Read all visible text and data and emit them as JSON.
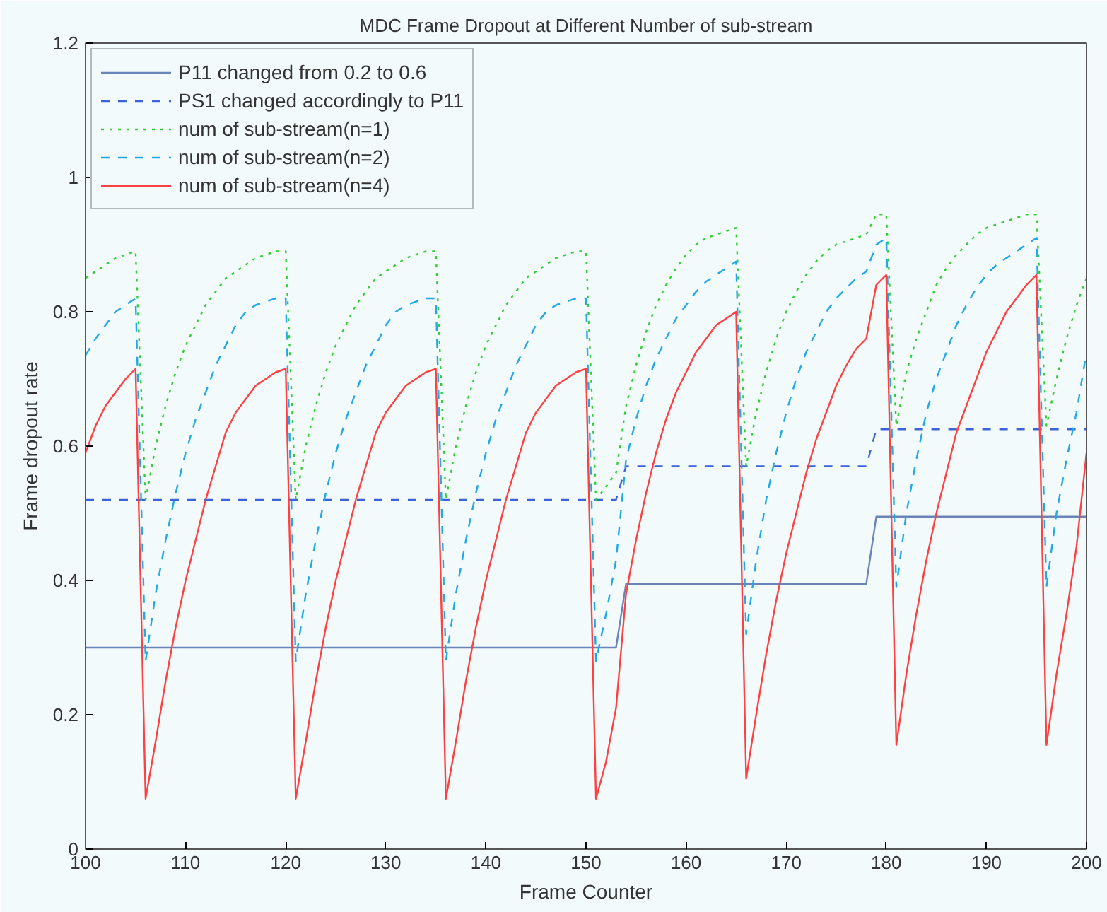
{
  "chart_data": {
    "type": "line",
    "title": "MDC Frame Dropout at Different Number of sub-stream",
    "xlabel": "Frame Counter",
    "ylabel": "Frame dropout rate",
    "xlim": [
      100,
      200
    ],
    "ylim": [
      0,
      1.2
    ],
    "xticks": [
      100,
      110,
      120,
      130,
      140,
      150,
      160,
      170,
      180,
      190,
      200
    ],
    "yticks": [
      0,
      0.2,
      0.4,
      0.6,
      0.8,
      1,
      1.2
    ],
    "grid": false,
    "legend": "top left",
    "marker": "none",
    "series": [
      {
        "name": "P11 changed from 0.2 to 0.6",
        "color": "#6a84b8",
        "line_style": "solid",
        "x": [
          100,
          153,
          154,
          178,
          179,
          200
        ],
        "values": [
          0.3,
          0.3,
          0.395,
          0.395,
          0.495,
          0.495
        ]
      },
      {
        "name": "PS1 changed accordingly to P11",
        "color": "#3c64d8",
        "line_style": "dashed",
        "x": [
          100,
          153,
          154,
          178,
          179,
          200
        ],
        "values": [
          0.52,
          0.52,
          0.57,
          0.57,
          0.625,
          0.625
        ]
      },
      {
        "name": "num of sub-stream(n=1)",
        "color": "#30d030",
        "line_style": "dotted",
        "x": [
          100,
          101,
          102,
          103,
          104,
          105,
          106,
          107,
          108,
          109,
          110,
          111,
          112,
          113,
          114,
          115,
          116,
          117,
          118,
          119,
          120,
          121,
          122,
          123,
          124,
          125,
          126,
          127,
          128,
          129,
          130,
          131,
          132,
          133,
          134,
          135,
          136,
          137,
          138,
          139,
          140,
          141,
          142,
          143,
          144,
          145,
          146,
          147,
          148,
          149,
          150,
          151,
          152,
          153,
          154,
          155,
          156,
          157,
          158,
          159,
          160,
          161,
          162,
          163,
          164,
          165,
          166,
          167,
          168,
          169,
          170,
          171,
          172,
          173,
          174,
          175,
          176,
          177,
          178,
          179,
          180,
          181,
          182,
          183,
          184,
          185,
          186,
          187,
          188,
          189,
          190,
          191,
          192,
          193,
          194,
          195,
          196,
          197,
          198,
          199,
          200
        ],
        "values": [
          0.85,
          0.86,
          0.87,
          0.88,
          0.885,
          0.89,
          0.52,
          0.6,
          0.66,
          0.71,
          0.75,
          0.78,
          0.81,
          0.83,
          0.85,
          0.86,
          0.87,
          0.88,
          0.885,
          0.89,
          0.89,
          0.52,
          0.6,
          0.66,
          0.71,
          0.75,
          0.78,
          0.81,
          0.83,
          0.85,
          0.86,
          0.87,
          0.88,
          0.885,
          0.89,
          0.89,
          0.52,
          0.6,
          0.66,
          0.71,
          0.75,
          0.78,
          0.81,
          0.83,
          0.85,
          0.86,
          0.87,
          0.88,
          0.885,
          0.89,
          0.89,
          0.52,
          0.54,
          0.56,
          0.66,
          0.72,
          0.77,
          0.81,
          0.84,
          0.865,
          0.885,
          0.9,
          0.91,
          0.915,
          0.92,
          0.925,
          0.57,
          0.65,
          0.71,
          0.76,
          0.8,
          0.83,
          0.855,
          0.875,
          0.89,
          0.9,
          0.905,
          0.91,
          0.915,
          0.945,
          0.945,
          0.63,
          0.71,
          0.76,
          0.8,
          0.84,
          0.865,
          0.885,
          0.9,
          0.915,
          0.925,
          0.93,
          0.935,
          0.94,
          0.945,
          0.945,
          0.63,
          0.7,
          0.76,
          0.81,
          0.85
        ]
      },
      {
        "name": "num of sub-stream(n=2)",
        "color": "#20a8e8",
        "line_style": "dashed",
        "x": [
          100,
          101,
          102,
          103,
          104,
          105,
          106,
          107,
          108,
          109,
          110,
          111,
          112,
          113,
          114,
          115,
          116,
          117,
          118,
          119,
          120,
          121,
          122,
          123,
          124,
          125,
          126,
          127,
          128,
          129,
          130,
          131,
          132,
          133,
          134,
          135,
          136,
          137,
          138,
          139,
          140,
          141,
          142,
          143,
          144,
          145,
          146,
          147,
          148,
          149,
          150,
          151,
          152,
          153,
          154,
          155,
          156,
          157,
          158,
          159,
          160,
          161,
          162,
          163,
          164,
          165,
          166,
          167,
          168,
          169,
          170,
          171,
          172,
          173,
          174,
          175,
          176,
          177,
          178,
          179,
          180,
          181,
          182,
          183,
          184,
          185,
          186,
          187,
          188,
          189,
          190,
          191,
          192,
          193,
          194,
          195,
          196,
          197,
          198,
          199,
          200
        ],
        "values": [
          0.735,
          0.76,
          0.78,
          0.8,
          0.81,
          0.82,
          0.28,
          0.38,
          0.46,
          0.53,
          0.59,
          0.64,
          0.68,
          0.72,
          0.75,
          0.78,
          0.8,
          0.81,
          0.815,
          0.82,
          0.82,
          0.28,
          0.38,
          0.46,
          0.53,
          0.59,
          0.64,
          0.68,
          0.72,
          0.75,
          0.78,
          0.8,
          0.81,
          0.815,
          0.82,
          0.82,
          0.28,
          0.38,
          0.46,
          0.53,
          0.59,
          0.64,
          0.68,
          0.72,
          0.75,
          0.78,
          0.8,
          0.81,
          0.815,
          0.82,
          0.82,
          0.28,
          0.35,
          0.43,
          0.58,
          0.64,
          0.69,
          0.73,
          0.76,
          0.79,
          0.81,
          0.83,
          0.845,
          0.855,
          0.865,
          0.875,
          0.32,
          0.43,
          0.52,
          0.59,
          0.65,
          0.7,
          0.74,
          0.77,
          0.8,
          0.82,
          0.835,
          0.85,
          0.86,
          0.9,
          0.91,
          0.39,
          0.5,
          0.58,
          0.65,
          0.7,
          0.74,
          0.78,
          0.81,
          0.835,
          0.855,
          0.87,
          0.88,
          0.89,
          0.9,
          0.91,
          0.39,
          0.5,
          0.58,
          0.65,
          0.74
        ]
      },
      {
        "name": "num of sub-stream(n=4)",
        "color": "#ff4040",
        "line_style": "solid",
        "x": [
          100,
          101,
          102,
          103,
          104,
          105,
          106,
          107,
          108,
          109,
          110,
          111,
          112,
          113,
          114,
          115,
          116,
          117,
          118,
          119,
          120,
          121,
          122,
          123,
          124,
          125,
          126,
          127,
          128,
          129,
          130,
          131,
          132,
          133,
          134,
          135,
          136,
          137,
          138,
          139,
          140,
          141,
          142,
          143,
          144,
          145,
          146,
          147,
          148,
          149,
          150,
          151,
          152,
          153,
          154,
          155,
          156,
          157,
          158,
          159,
          160,
          161,
          162,
          163,
          164,
          165,
          166,
          167,
          168,
          169,
          170,
          171,
          172,
          173,
          174,
          175,
          176,
          177,
          178,
          179,
          180,
          181,
          182,
          183,
          184,
          185,
          186,
          187,
          188,
          189,
          190,
          191,
          192,
          193,
          194,
          195,
          196,
          197,
          198,
          199,
          200
        ],
        "values": [
          0.59,
          0.63,
          0.66,
          0.68,
          0.7,
          0.715,
          0.075,
          0.16,
          0.25,
          0.33,
          0.4,
          0.46,
          0.52,
          0.57,
          0.62,
          0.65,
          0.67,
          0.69,
          0.7,
          0.71,
          0.715,
          0.075,
          0.16,
          0.25,
          0.33,
          0.4,
          0.46,
          0.52,
          0.57,
          0.62,
          0.65,
          0.67,
          0.69,
          0.7,
          0.71,
          0.715,
          0.075,
          0.16,
          0.25,
          0.33,
          0.4,
          0.46,
          0.52,
          0.57,
          0.62,
          0.65,
          0.67,
          0.69,
          0.7,
          0.71,
          0.715,
          0.075,
          0.13,
          0.21,
          0.38,
          0.46,
          0.53,
          0.59,
          0.64,
          0.68,
          0.71,
          0.74,
          0.76,
          0.78,
          0.79,
          0.8,
          0.105,
          0.2,
          0.29,
          0.37,
          0.44,
          0.5,
          0.56,
          0.61,
          0.65,
          0.69,
          0.72,
          0.745,
          0.76,
          0.84,
          0.855,
          0.155,
          0.26,
          0.35,
          0.43,
          0.5,
          0.56,
          0.62,
          0.66,
          0.7,
          0.74,
          0.77,
          0.8,
          0.82,
          0.84,
          0.855,
          0.155,
          0.26,
          0.35,
          0.45,
          0.59
        ]
      }
    ]
  }
}
